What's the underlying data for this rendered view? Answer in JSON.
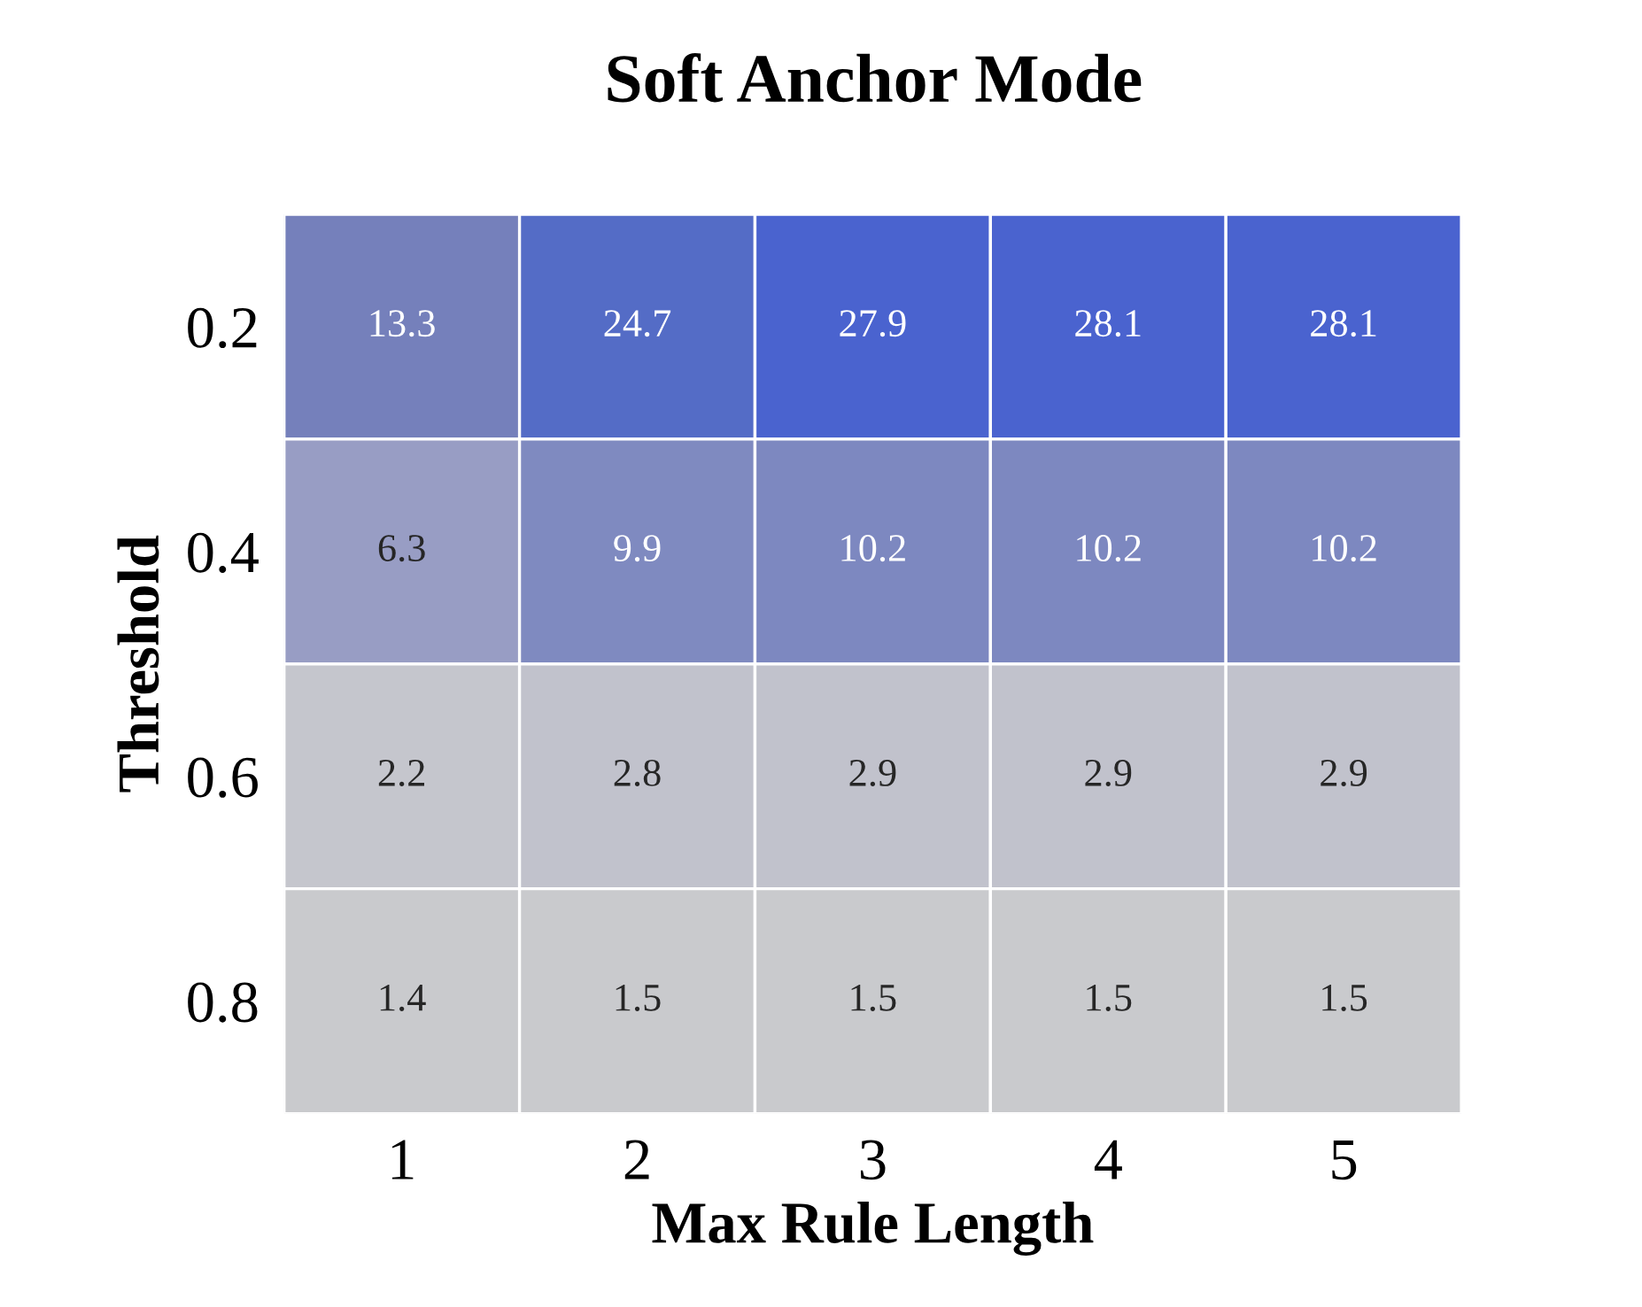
{
  "chart_data": {
    "type": "heatmap",
    "title": "Soft Anchor Mode",
    "xlabel": "Max Rule Length",
    "ylabel": "Threshold",
    "categories": [
      "1",
      "2",
      "3",
      "4",
      "5"
    ],
    "y_categories": [
      "0.2",
      "0.4",
      "0.6",
      "0.8"
    ],
    "cells": [
      [
        13.3,
        24.7,
        27.9,
        28.1,
        28.1
      ],
      [
        6.3,
        9.9,
        10.2,
        10.2,
        10.2
      ],
      [
        2.2,
        2.8,
        2.9,
        2.9,
        2.9
      ],
      [
        1.4,
        1.5,
        1.5,
        1.5,
        1.5
      ]
    ],
    "data_labels": true
  }
}
